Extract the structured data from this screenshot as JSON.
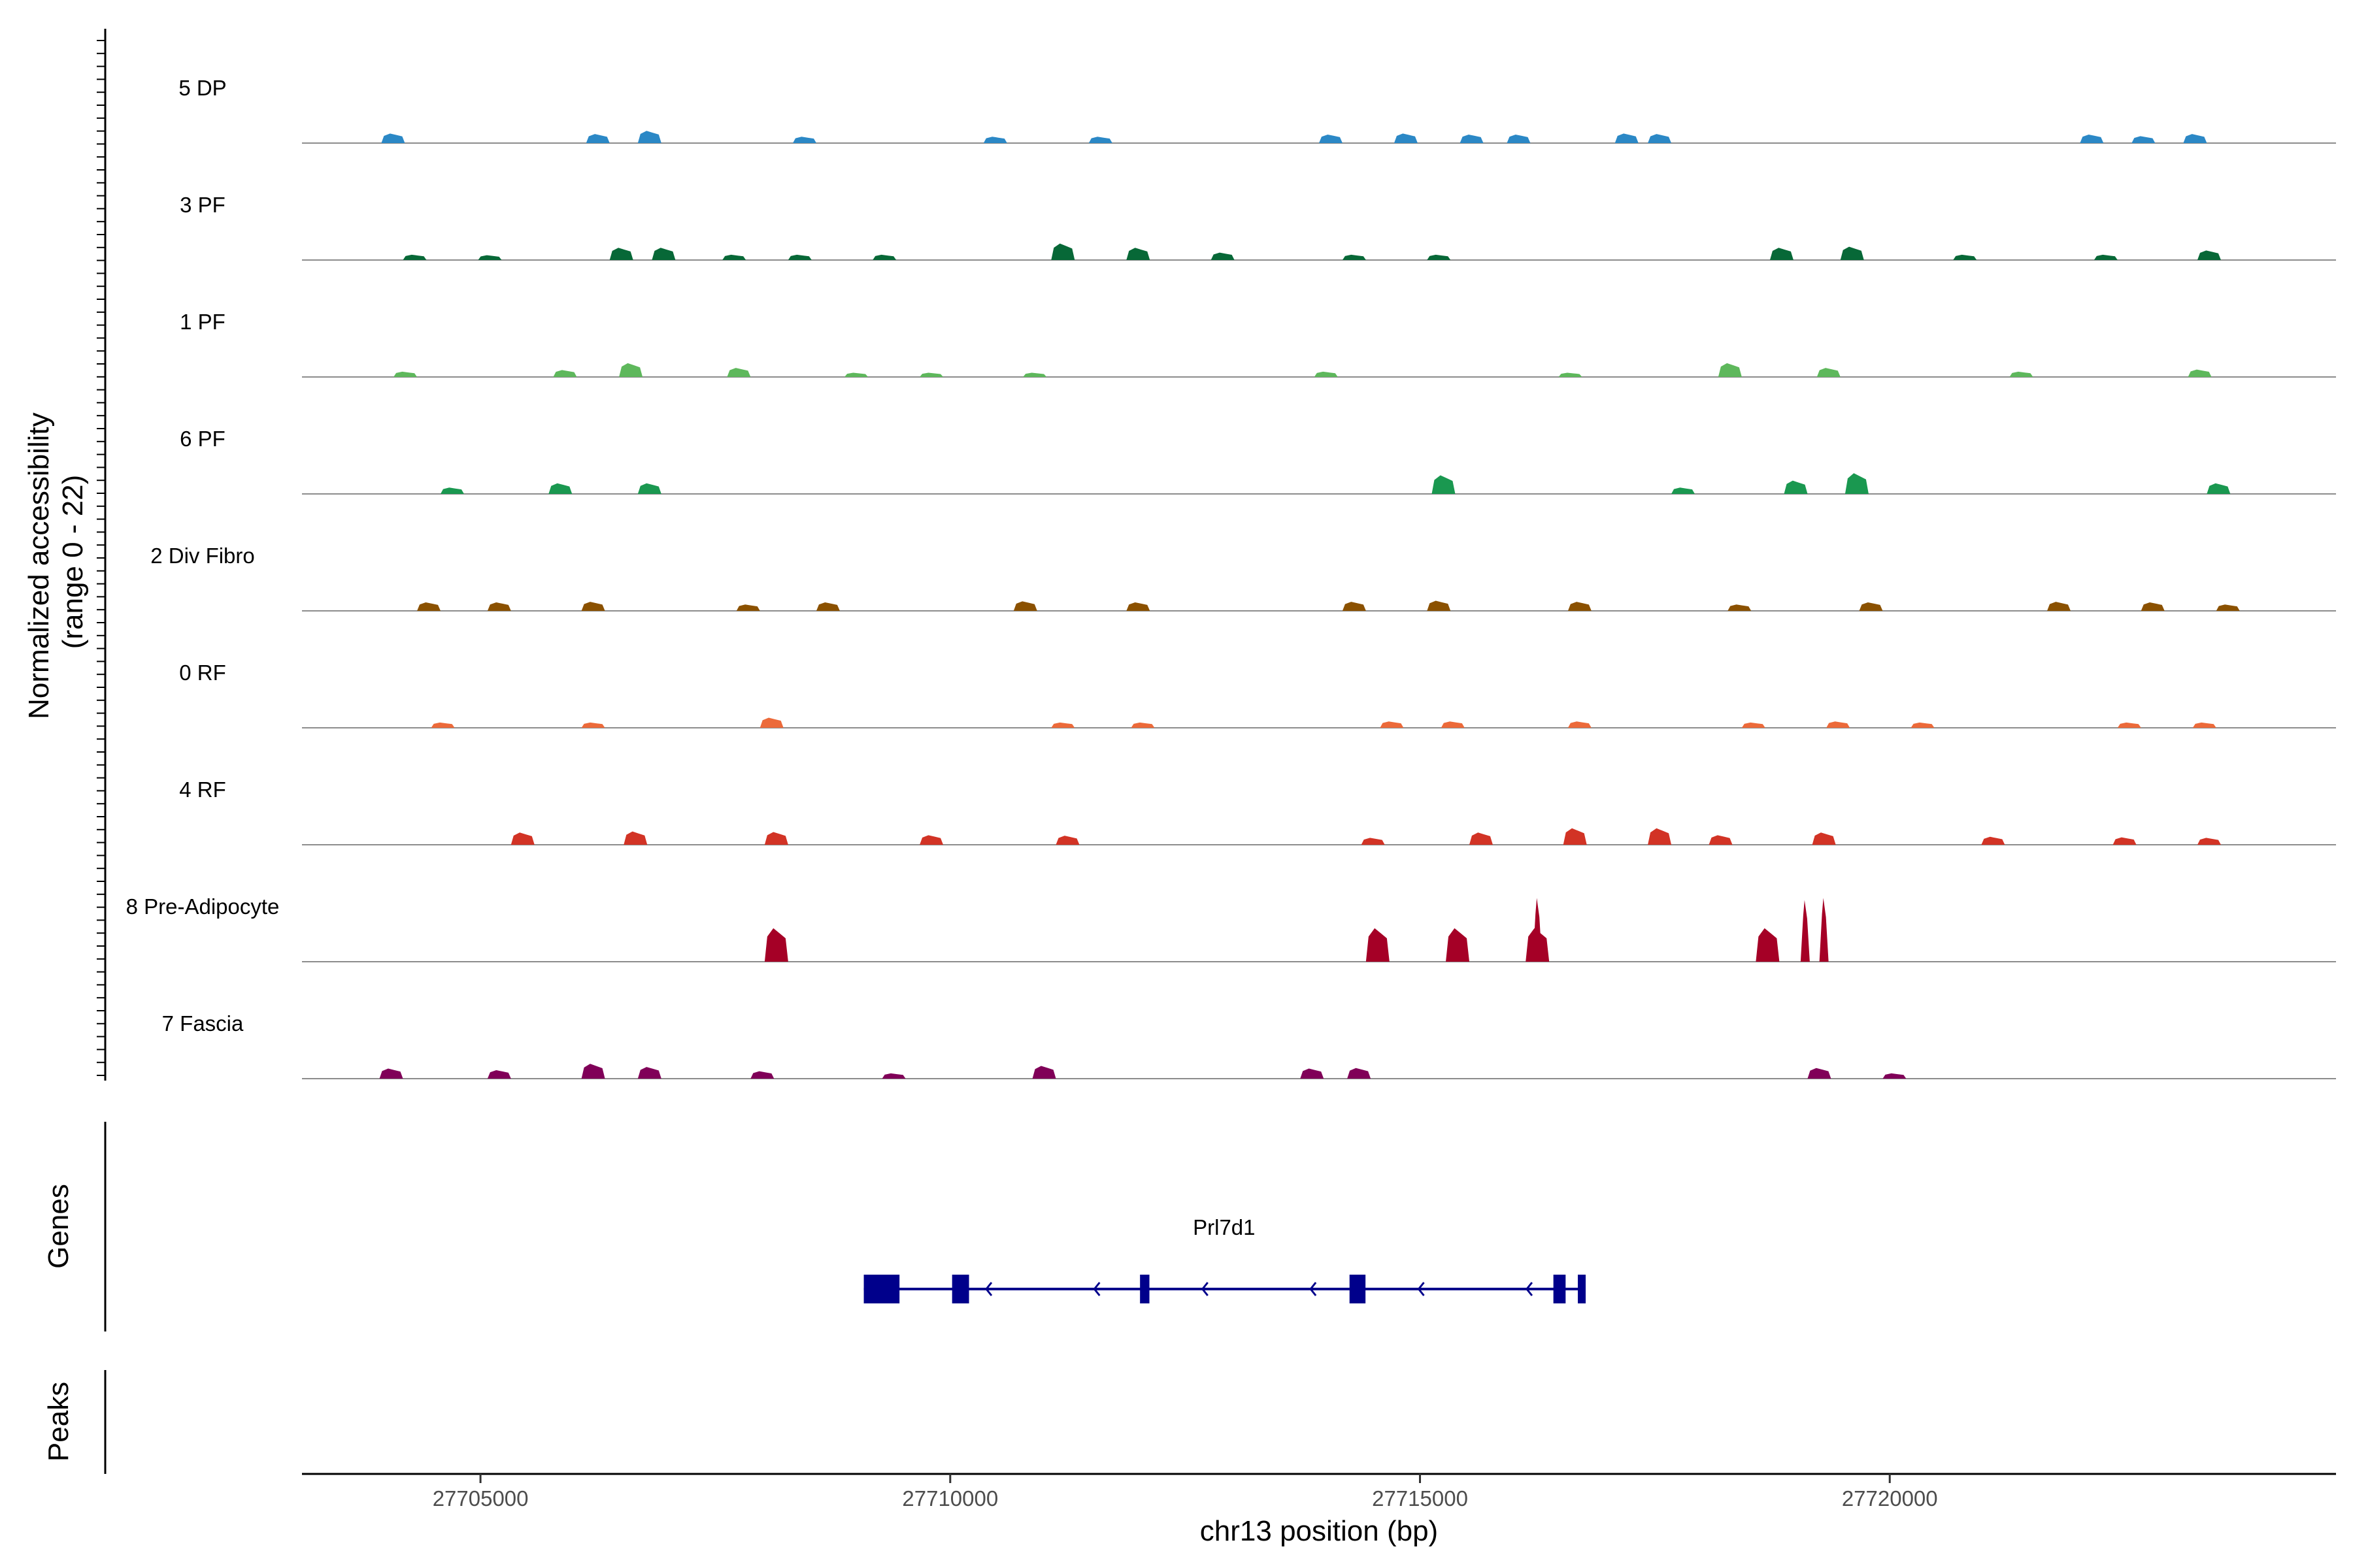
{
  "chart_data": {
    "type": "area",
    "title": "",
    "xlabel": "chr13 position (bp)",
    "ylabel": "Normalized accessibility\n(range 0 - 22)",
    "y_range_text": "(range 0 - 22)",
    "ylim": [
      0,
      22
    ],
    "xlim": [
      27703100,
      27724750
    ],
    "xticks": [
      27705000,
      27710000,
      27715000,
      27720000
    ],
    "xtick_labels": [
      "27705000",
      "27710000",
      "27715000",
      "27720000"
    ],
    "grid": false,
    "panels": [
      "Genes",
      "Peaks"
    ],
    "series": [
      {
        "name": "5 DP",
        "color": "#2b88c6",
        "peaks": [
          [
            27704070,
            1.8
          ],
          [
            27706250,
            1.7
          ],
          [
            27706800,
            2.3
          ],
          [
            27708450,
            1.2
          ],
          [
            27710480,
            1.2
          ],
          [
            27711600,
            1.2
          ],
          [
            27714050,
            1.6
          ],
          [
            27714850,
            1.8
          ],
          [
            27715550,
            1.6
          ],
          [
            27716050,
            1.6
          ],
          [
            27717200,
            1.8
          ],
          [
            27717550,
            1.7
          ],
          [
            27722150,
            1.6
          ],
          [
            27722700,
            1.3
          ],
          [
            27723250,
            1.7
          ]
        ]
      },
      {
        "name": "3 PF",
        "color": "#076837",
        "peaks": [
          [
            27704300,
            1.0
          ],
          [
            27705100,
            0.9
          ],
          [
            27706500,
            2.3
          ],
          [
            27706950,
            2.3
          ],
          [
            27707700,
            1.0
          ],
          [
            27708400,
            1.0
          ],
          [
            27709300,
            1.0
          ],
          [
            27711200,
            3.1
          ],
          [
            27712000,
            2.3
          ],
          [
            27712900,
            1.4
          ],
          [
            27714300,
            1.0
          ],
          [
            27715200,
            1.0
          ],
          [
            27718850,
            2.3
          ],
          [
            27719600,
            2.5
          ],
          [
            27720800,
            1.0
          ],
          [
            27722300,
            1.0
          ],
          [
            27723400,
            1.8
          ]
        ]
      },
      {
        "name": "1 PF",
        "color": "#5eb85c",
        "peaks": [
          [
            27704200,
            1.0
          ],
          [
            27705900,
            1.3
          ],
          [
            27706600,
            2.6
          ],
          [
            27707750,
            1.7
          ],
          [
            27709000,
            0.8
          ],
          [
            27709800,
            0.8
          ],
          [
            27710900,
            0.8
          ],
          [
            27714000,
            1.0
          ],
          [
            27716600,
            0.8
          ],
          [
            27718300,
            2.6
          ],
          [
            27719350,
            1.7
          ],
          [
            27721400,
            1.0
          ],
          [
            27723300,
            1.4
          ]
        ]
      },
      {
        "name": "6 PF",
        "color": "#1a9850",
        "peaks": [
          [
            27704700,
            1.2
          ],
          [
            27705850,
            2.0
          ],
          [
            27706800,
            2.0
          ],
          [
            27715250,
            3.5
          ],
          [
            27717800,
            1.2
          ],
          [
            27719000,
            2.5
          ],
          [
            27719650,
            3.9
          ],
          [
            27723500,
            2.0
          ]
        ]
      },
      {
        "name": "2 Div Fibro",
        "color": "#8b5100",
        "peaks": [
          [
            27704450,
            1.6
          ],
          [
            27705200,
            1.6
          ],
          [
            27706200,
            1.7
          ],
          [
            27707850,
            1.2
          ],
          [
            27708700,
            1.6
          ],
          [
            27710800,
            1.8
          ],
          [
            27712000,
            1.6
          ],
          [
            27714300,
            1.7
          ],
          [
            27715200,
            1.9
          ],
          [
            27716700,
            1.7
          ],
          [
            27718400,
            1.2
          ],
          [
            27719800,
            1.6
          ],
          [
            27721800,
            1.7
          ],
          [
            27722800,
            1.6
          ],
          [
            27723600,
            1.2
          ]
        ]
      },
      {
        "name": "0 RF",
        "color": "#ec6a3a",
        "peaks": [
          [
            27704600,
            1.0
          ],
          [
            27706200,
            1.0
          ],
          [
            27708100,
            1.9
          ],
          [
            27711200,
            1.0
          ],
          [
            27712050,
            1.0
          ],
          [
            27714700,
            1.2
          ],
          [
            27715350,
            1.2
          ],
          [
            27716700,
            1.2
          ],
          [
            27718550,
            1.0
          ],
          [
            27719450,
            1.2
          ],
          [
            27720350,
            1.0
          ],
          [
            27722550,
            1.0
          ],
          [
            27723350,
            1.0
          ]
        ]
      },
      {
        "name": "4 RF",
        "color": "#d23325",
        "peaks": [
          [
            27705450,
            2.3
          ],
          [
            27706650,
            2.5
          ],
          [
            27708150,
            2.4
          ],
          [
            27709800,
            1.8
          ],
          [
            27711250,
            1.7
          ],
          [
            27714500,
            1.3
          ],
          [
            27715650,
            2.3
          ],
          [
            27716650,
            3.1
          ],
          [
            27717550,
            3.1
          ],
          [
            27718200,
            1.8
          ],
          [
            27719300,
            2.3
          ],
          [
            27721100,
            1.5
          ],
          [
            27722500,
            1.4
          ],
          [
            27723400,
            1.3
          ]
        ]
      },
      {
        "name": "8 Pre-Adipocyte",
        "color": "#a50026",
        "peaks": [
          [
            27708150,
            6.3
          ],
          [
            27714550,
            6.3
          ],
          [
            27715400,
            6.3
          ],
          [
            27716250,
            6.3
          ],
          [
            27716250,
            12.0
          ],
          [
            27718700,
            6.3
          ],
          [
            27719100,
            11.6
          ],
          [
            27719300,
            12.0
          ]
        ]
      },
      {
        "name": "7 Fascia",
        "color": "#800058",
        "peaks": [
          [
            27704050,
            1.9
          ],
          [
            27705200,
            1.6
          ],
          [
            27706200,
            2.8
          ],
          [
            27706800,
            2.2
          ],
          [
            27708000,
            1.4
          ],
          [
            27709400,
            1.0
          ],
          [
            27711000,
            2.4
          ],
          [
            27713850,
            1.9
          ],
          [
            27714350,
            2.0
          ],
          [
            27719250,
            2.0
          ],
          [
            27720050,
            1.0
          ]
        ]
      }
    ],
    "genes": [
      {
        "name": "Prl7d1",
        "color": "#00008b",
        "strand": "-",
        "start": 27709080,
        "end": 27716750,
        "exons": [
          [
            27709080,
            27709460
          ],
          [
            27710020,
            27710200
          ],
          [
            27712020,
            27712120
          ],
          [
            27714250,
            27714420
          ],
          [
            27716420,
            27716550
          ],
          [
            27716680,
            27716750
          ]
        ]
      }
    ],
    "peaks_track": []
  }
}
